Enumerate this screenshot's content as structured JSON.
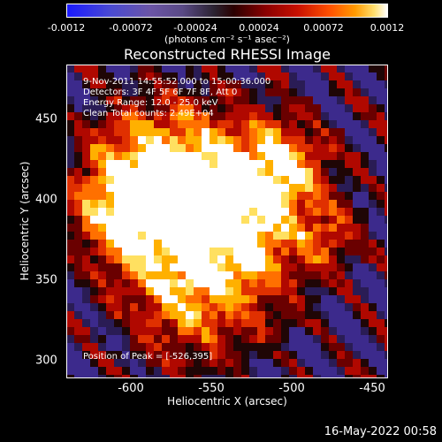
{
  "colorbar": {
    "ticks": [
      "-0.0012",
      "-0.00072",
      "-0.00024",
      "0.00024",
      "0.00072",
      "0.0012"
    ],
    "units": "(photons cm⁻² s⁻¹ asec⁻²)"
  },
  "title": "Reconstructed RHESSI Image",
  "info": {
    "time": "9-Nov-2011 14:55:52.000 to 15:00:36.000",
    "detectors": "Detectors: 3F 4F 5F 6F 7F 8F, Att 0",
    "energy": "Energy Range: 12.0 - 25.0 keV",
    "clean": "Clean     Total counts: 2.49E+04",
    "peak": "Position of Peak = [-526,395]"
  },
  "timestamp": "16-May-2022 00:58",
  "chart_data": {
    "type": "heatmap",
    "title": "Reconstructed RHESSI Image",
    "xlabel": "Heliocentric X (arcsec)",
    "ylabel": "Heliocentric Y (arcsec)",
    "xlim": [
      -640,
      -440
    ],
    "ylim": [
      295,
      490
    ],
    "xticks": [
      "-600",
      "-550",
      "-500",
      "-450"
    ],
    "yticks": [
      "450",
      "400",
      "350",
      "300"
    ],
    "colorbar_range": [
      -0.0012,
      0.0012
    ],
    "peak": [
      -526,
      395
    ],
    "colors": {
      "negative": "#3c2a8c",
      "zero": "#1f0606",
      "positive": "#ff5000",
      "max": "#ffffff"
    }
  }
}
